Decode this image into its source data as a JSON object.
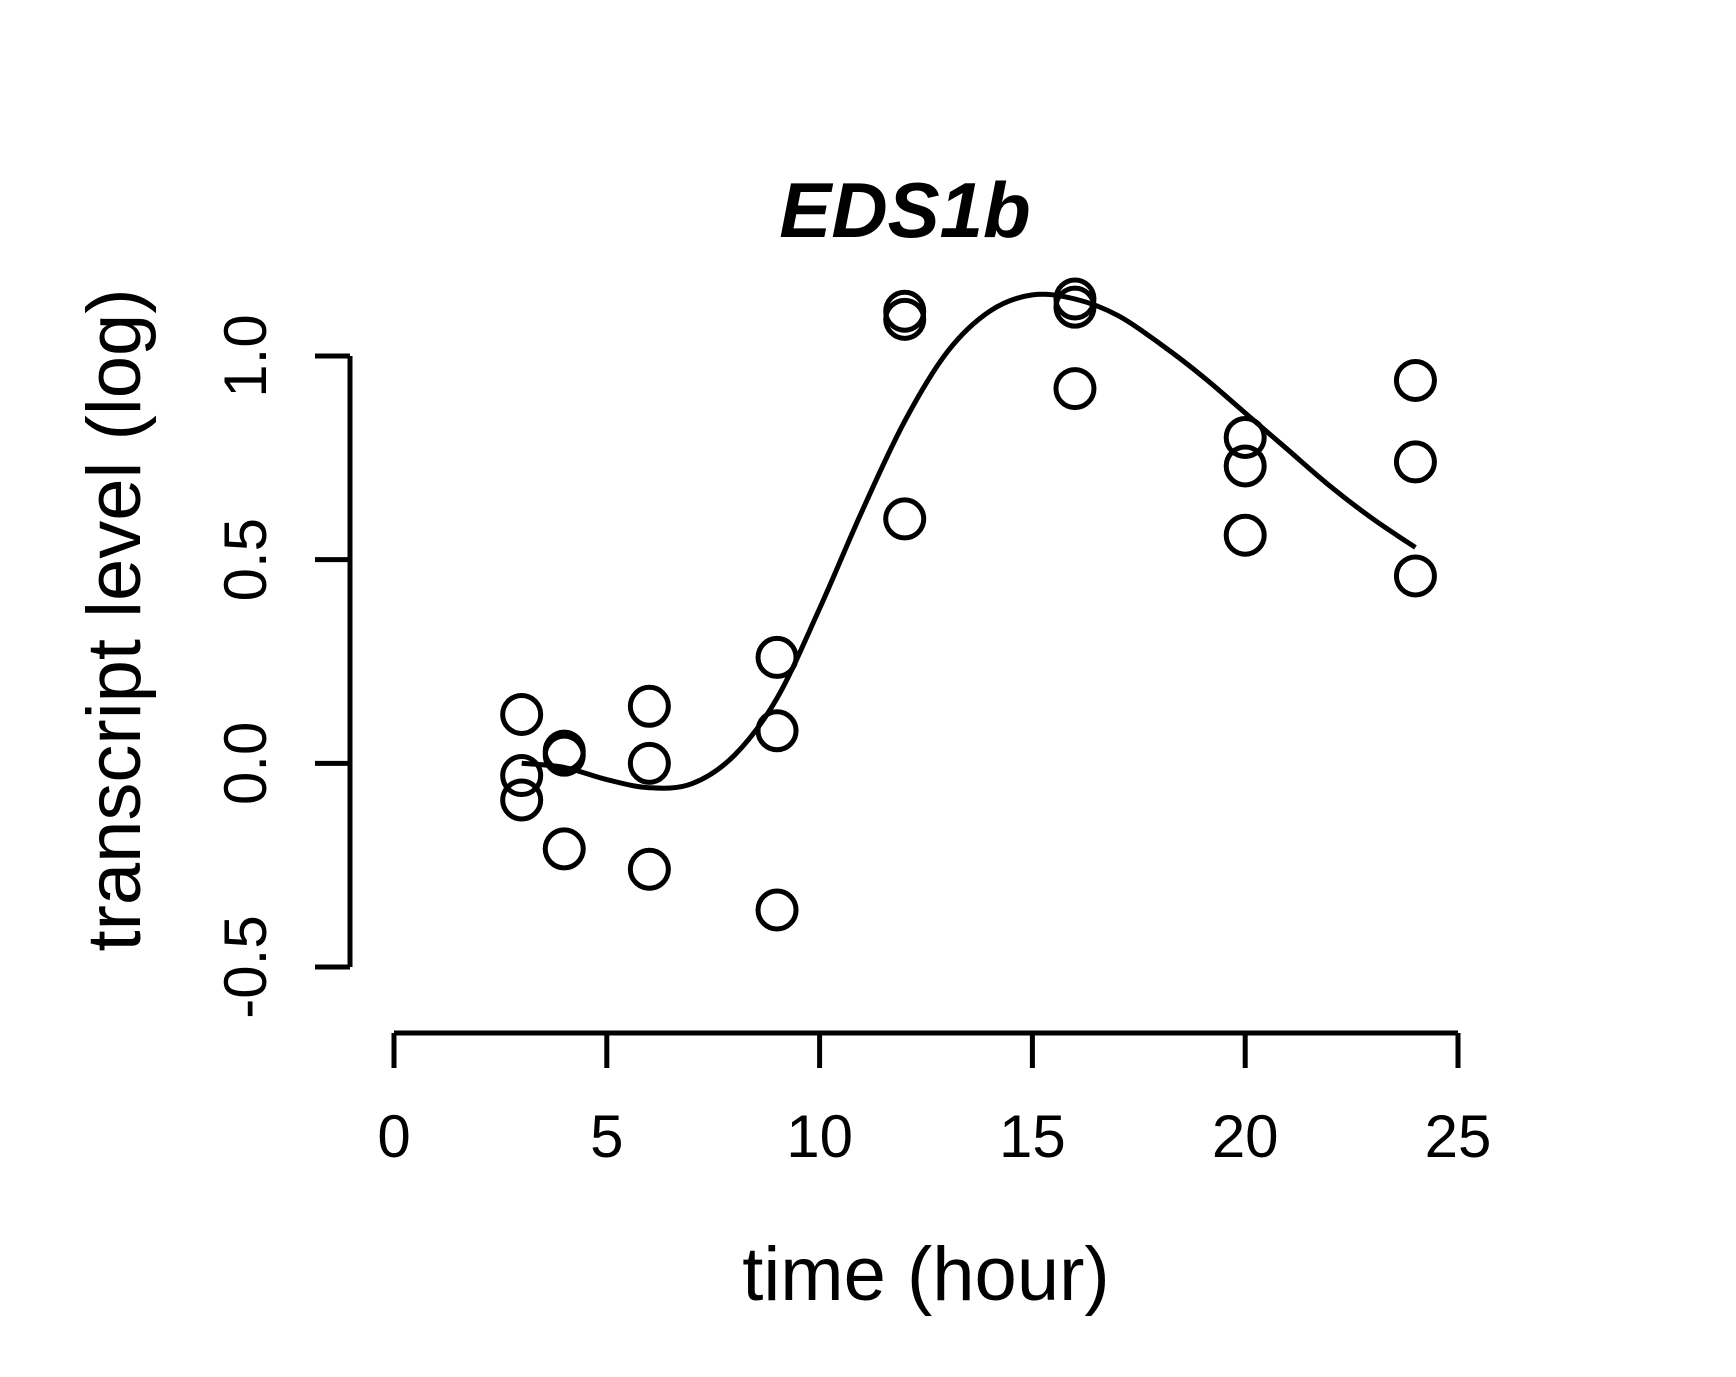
{
  "chart_data": {
    "type": "scatter",
    "title": "EDS1b",
    "xlabel": "time (hour)",
    "ylabel": "transcript level (log)",
    "xlim": [
      0,
      25
    ],
    "ylim": [
      -0.5,
      1.0
    ],
    "x_ticks": [
      "0",
      "5",
      "10",
      "15",
      "20",
      "25"
    ],
    "x_tick_values": [
      0,
      5,
      10,
      15,
      20,
      25
    ],
    "y_ticks": [
      "-0.5",
      "0.0",
      "0.5",
      "1.0"
    ],
    "y_tick_values": [
      -0.5,
      0.0,
      0.5,
      1.0
    ],
    "grid": false,
    "legend": "none",
    "series": [
      {
        "kind": "points",
        "marker": "open-circle",
        "x": [
          3,
          3,
          3,
          4,
          4,
          4,
          6,
          6,
          6,
          9,
          9,
          9,
          12,
          12,
          12,
          16,
          16,
          16,
          20,
          20,
          20,
          24,
          24,
          24
        ],
        "y": [
          0.12,
          -0.03,
          -0.09,
          0.03,
          0.02,
          -0.21,
          0.14,
          0.0,
          -0.26,
          0.26,
          0.08,
          -0.36,
          1.11,
          1.09,
          0.6,
          1.14,
          1.12,
          0.92,
          0.8,
          0.73,
          0.56,
          0.94,
          0.74,
          0.46
        ]
      },
      {
        "kind": "fit-curve",
        "x": [
          3,
          4,
          5,
          6,
          7,
          8,
          9,
          10,
          11,
          12,
          13,
          14,
          15,
          16,
          17,
          18,
          19,
          20,
          21,
          22,
          23,
          24
        ],
        "y": [
          0.0,
          -0.01,
          -0.04,
          -0.06,
          -0.05,
          0.02,
          0.16,
          0.38,
          0.62,
          0.84,
          1.01,
          1.11,
          1.15,
          1.14,
          1.1,
          1.03,
          0.95,
          0.86,
          0.77,
          0.68,
          0.6,
          0.53
        ]
      }
    ]
  }
}
